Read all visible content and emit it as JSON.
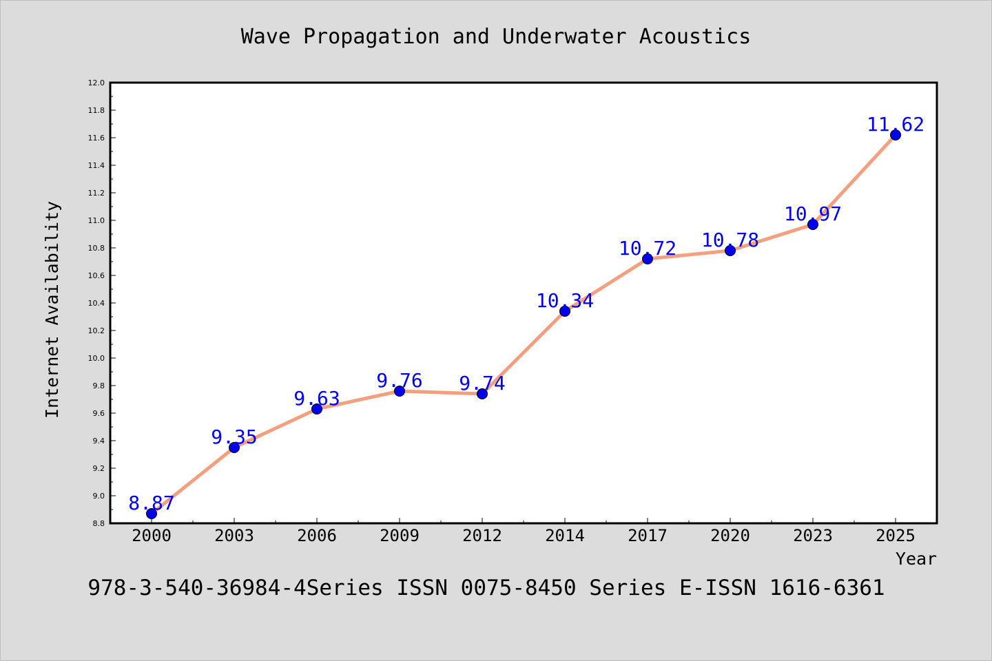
{
  "chart_data": {
    "type": "line",
    "title": "Wave Propagation and Underwater Acoustics",
    "xlabel": "Year",
    "ylabel": "Internet Availability",
    "categories": [
      "2000",
      "2003",
      "2006",
      "2009",
      "2012",
      "2014",
      "2017",
      "2020",
      "2023",
      "2025"
    ],
    "series": [
      {
        "values": [
          8.87,
          9.35,
          9.63,
          9.76,
          9.74,
          10.34,
          10.72,
          10.78,
          10.97,
          11.62
        ],
        "line_color": "#f4a07e",
        "marker_color": "#0000ee"
      }
    ],
    "ylim": [
      8.8,
      12.0
    ],
    "y_ticks": [
      "8.8",
      "9.0",
      "9.2",
      "9.4",
      "9.6",
      "9.8",
      "10.0",
      "10.2",
      "10.4",
      "10.6",
      "10.8",
      "11.0",
      "11.2",
      "11.4",
      "11.6",
      "11.8",
      "12.0"
    ],
    "data_labels": [
      "8.87",
      "9.35",
      "9.63",
      "9.76",
      "9.74",
      "10.34",
      "10.72",
      "10.78",
      "10.97",
      "11.62"
    ],
    "grid": false,
    "legend": "none"
  },
  "footer": {
    "text": "978-3-540-36984-4Series ISSN 0075-8450 Series E-ISSN 1616-6361"
  },
  "colors": {
    "page_background": "#dcdcdc",
    "plot_background": "#ffffff",
    "data_label_color": "#0000ee"
  }
}
